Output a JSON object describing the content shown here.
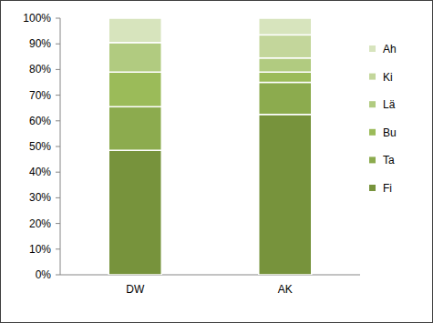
{
  "chart_data": {
    "type": "bar",
    "stacked": true,
    "grid": false,
    "legend": "right",
    "categories": [
      "DW",
      "AK"
    ],
    "ylim": [
      0,
      100
    ],
    "yticks": [
      {
        "value": 0,
        "label": "0%"
      },
      {
        "value": 10,
        "label": "10%"
      },
      {
        "value": 20,
        "label": "20%"
      },
      {
        "value": 30,
        "label": "30%"
      },
      {
        "value": 40,
        "label": "40%"
      },
      {
        "value": 50,
        "label": "50%"
      },
      {
        "value": 60,
        "label": "60%"
      },
      {
        "value": 70,
        "label": "70%"
      },
      {
        "value": 80,
        "label": "80%"
      },
      {
        "value": 90,
        "label": "90%"
      },
      {
        "value": 100,
        "label": "100%"
      }
    ],
    "series": [
      {
        "name": "Fi",
        "color": "#77933c",
        "values": [
          48.5,
          62.5
        ]
      },
      {
        "name": "Ta",
        "color": "#8cab4e",
        "values": [
          17,
          12.5
        ]
      },
      {
        "name": "Bu",
        "color": "#9bbb59",
        "values": [
          13.5,
          4
        ]
      },
      {
        "name": "Lä",
        "color": "#b1cb80",
        "values": [
          11.5,
          5.5
        ]
      },
      {
        "name": "Ki",
        "color": "#c3d69b",
        "values": [
          0,
          9
        ]
      },
      {
        "name": "Ah",
        "color": "#d7e4bd",
        "values": [
          9.5,
          6.5
        ]
      }
    ]
  }
}
